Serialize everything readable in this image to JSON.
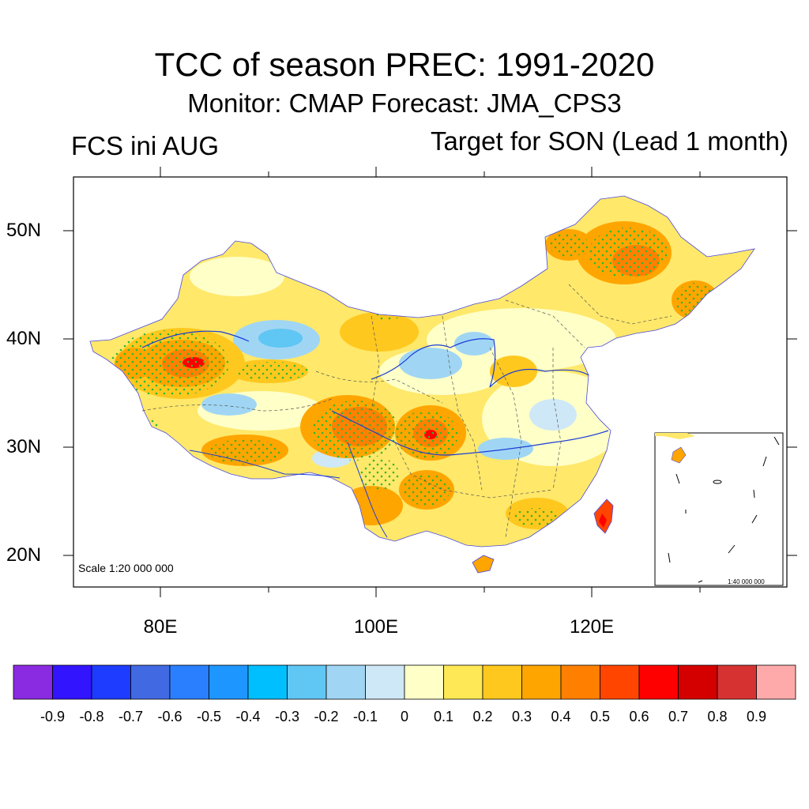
{
  "title": "TCC of season PREC: 1991-2020",
  "subtitle": "Monitor: CMAP   Forecast: JMA_CPS3",
  "left_label": "FCS ini AUG",
  "right_label": "Target for SON (Lead 1 month)",
  "lat_labels": [
    "50N",
    "40N",
    "30N",
    "20N"
  ],
  "lon_labels": [
    "80E",
    "100E",
    "120E"
  ],
  "scale_text": "Scale 1:20 000 000",
  "inset_scale_text": "1:40 000 000",
  "colorbar": {
    "labels": [
      "-0.9",
      "-0.8",
      "-0.7",
      "-0.6",
      "-0.5",
      "-0.4",
      "-0.3",
      "-0.2",
      "-0.1",
      "0",
      "0.1",
      "0.2",
      "0.3",
      "0.4",
      "0.5",
      "0.6",
      "0.7",
      "0.8",
      "0.9"
    ],
    "colors": [
      "#8a2be2",
      "#3214ff",
      "#1e3cff",
      "#4169e1",
      "#2a7fff",
      "#1e96ff",
      "#00bfff",
      "#60c6f4",
      "#a0d6f4",
      "#cfe8f7",
      "#ffffc8",
      "#ffe855",
      "#ffc81e",
      "#ffa500",
      "#ff8000",
      "#ff4500",
      "#ff0000",
      "#d40000",
      "#d73232",
      "#ffaaaa"
    ]
  },
  "colors": {
    "land_base": "#ffe86a",
    "strong_positive": "#ff8c1a",
    "negative": "#a0d6f4",
    "stipple": "#2eb82e",
    "river": "#1a3cd6"
  }
}
